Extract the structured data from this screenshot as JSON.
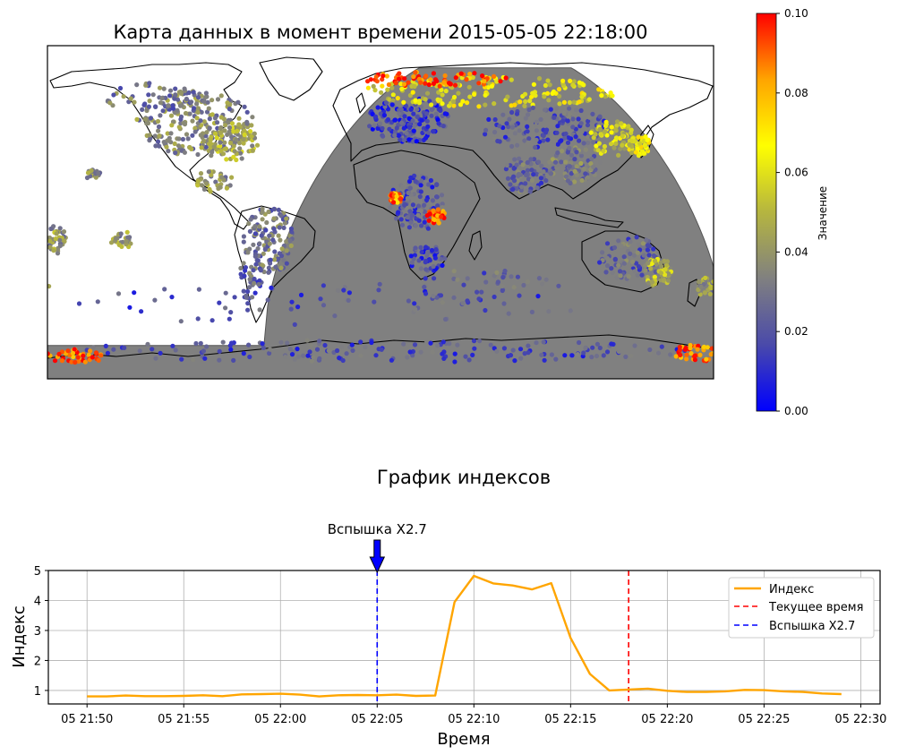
{
  "chart_data": [
    {
      "type": "scatter",
      "title": "Карта данных в момент времени 2015-05-05 22:18:00",
      "colorbar": {
        "label": "Значение",
        "vmin": 0.0,
        "vmax": 0.1,
        "ticks": [
          "0.00",
          "0.02",
          "0.04",
          "0.06",
          "0.08",
          "0.10"
        ],
        "colors": [
          "#0000ff",
          "#4a4aaa",
          "#808080",
          "#b5b540",
          "#ffff00",
          "#ffa500",
          "#ff0000"
        ]
      },
      "night_shade_color": "#808080",
      "clusters": [
        {
          "lon": -100,
          "lat": 48,
          "rlon": 32,
          "rlat": 18,
          "value": 0.035,
          "n": 260
        },
        {
          "lon": -80,
          "lat": 38,
          "rlon": 14,
          "rlat": 10,
          "value": 0.045,
          "n": 80
        },
        {
          "lon": -120,
          "lat": 62,
          "rlon": 30,
          "rlat": 8,
          "value": 0.03,
          "n": 60
        },
        {
          "lon": -60,
          "lat": -15,
          "rlon": 14,
          "rlat": 18,
          "value": 0.03,
          "n": 140
        },
        {
          "lon": -70,
          "lat": -35,
          "rlon": 6,
          "rlat": 14,
          "value": 0.025,
          "n": 40
        },
        {
          "lon": -90,
          "lat": 17,
          "rlon": 10,
          "rlat": 6,
          "value": 0.04,
          "n": 40
        },
        {
          "lon": 15,
          "lat": 50,
          "rlon": 22,
          "rlat": 12,
          "value": 0.015,
          "n": 160
        },
        {
          "lon": 60,
          "lat": 65,
          "rlon": 70,
          "rlat": 8,
          "value": 0.06,
          "n": 160
        },
        {
          "lon": 30,
          "lat": 72,
          "rlon": 40,
          "rlat": 4,
          "value": 0.095,
          "n": 70
        },
        {
          "lon": 90,
          "lat": 45,
          "rlon": 35,
          "rlat": 12,
          "value": 0.02,
          "n": 140
        },
        {
          "lon": 20,
          "lat": 5,
          "rlon": 15,
          "rlat": 15,
          "value": 0.02,
          "n": 120
        },
        {
          "lon": 30,
          "lat": -2,
          "rlon": 5,
          "rlat": 4,
          "value": 0.09,
          "n": 45
        },
        {
          "lon": 8,
          "lat": 8,
          "rlon": 4,
          "rlat": 3,
          "value": 0.085,
          "n": 30
        },
        {
          "lon": 25,
          "lat": -25,
          "rlon": 10,
          "rlat": 8,
          "value": 0.015,
          "n": 50
        },
        {
          "lon": 78,
          "lat": 20,
          "rlon": 12,
          "rlat": 10,
          "value": 0.025,
          "n": 70
        },
        {
          "lon": 105,
          "lat": 25,
          "rlon": 15,
          "rlat": 10,
          "value": 0.03,
          "n": 80
        },
        {
          "lon": 125,
          "lat": 40,
          "rlon": 12,
          "rlat": 10,
          "value": 0.055,
          "n": 70
        },
        {
          "lon": 140,
          "lat": 36,
          "rlon": 6,
          "rlat": 6,
          "value": 0.06,
          "n": 40
        },
        {
          "lon": 135,
          "lat": -25,
          "rlon": 18,
          "rlat": 12,
          "value": 0.025,
          "n": 90
        },
        {
          "lon": 150,
          "lat": -32,
          "rlon": 8,
          "rlat": 8,
          "value": 0.05,
          "n": 50
        },
        {
          "lon": 175,
          "lat": -40,
          "rlon": 6,
          "rlat": 5,
          "value": 0.04,
          "n": 30
        },
        {
          "lon": -155,
          "lat": 20,
          "rlon": 4,
          "rlat": 3,
          "value": 0.035,
          "n": 20
        },
        {
          "lon": -175,
          "lat": -15,
          "rlon": 5,
          "rlat": 8,
          "value": 0.04,
          "n": 40
        },
        {
          "lon": -140,
          "lat": -15,
          "rlon": 6,
          "rlat": 5,
          "value": 0.04,
          "n": 25
        },
        {
          "lon": 0,
          "lat": -75,
          "rlon": 170,
          "rlat": 6,
          "value": 0.02,
          "n": 180
        },
        {
          "lon": -165,
          "lat": -78,
          "rlon": 15,
          "rlat": 4,
          "value": 0.09,
          "n": 40
        },
        {
          "lon": 170,
          "lat": -76,
          "rlon": 12,
          "rlat": 5,
          "value": 0.09,
          "n": 40
        },
        {
          "lon": -30,
          "lat": -50,
          "rlon": 140,
          "rlat": 12,
          "value": 0.02,
          "n": 70
        },
        {
          "lon": 60,
          "lat": -40,
          "rlon": 40,
          "rlat": 10,
          "value": 0.025,
          "n": 40
        }
      ]
    },
    {
      "type": "line",
      "title": "График индексов",
      "xlabel": "Время",
      "ylabel": "Индекс",
      "x_start": "2015-05-05 21:50",
      "x_step_minutes": 1,
      "xlim_minutes": [
        -2,
        41
      ],
      "ylim": [
        0.55,
        5
      ],
      "yticks": [
        1,
        2,
        3,
        4,
        5
      ],
      "xticks": [
        {
          "minute": 0,
          "label": "05 21:50"
        },
        {
          "minute": 5,
          "label": "05 21:55"
        },
        {
          "minute": 10,
          "label": "05 22:00"
        },
        {
          "minute": 15,
          "label": "05 22:05"
        },
        {
          "minute": 20,
          "label": "05 22:10"
        },
        {
          "minute": 25,
          "label": "05 22:15"
        },
        {
          "minute": 30,
          "label": "05 22:20"
        },
        {
          "minute": 35,
          "label": "05 22:25"
        },
        {
          "minute": 40,
          "label": "05 22:30"
        }
      ],
      "grid": true,
      "legend_position": "top-right",
      "series": [
        {
          "name": "Индекс",
          "color": "#ffa500",
          "values": [
            0.8,
            0.8,
            0.83,
            0.81,
            0.81,
            0.82,
            0.84,
            0.81,
            0.87,
            0.88,
            0.89,
            0.86,
            0.8,
            0.84,
            0.85,
            0.84,
            0.86,
            0.82,
            0.83,
            3.95,
            4.82,
            4.57,
            4.5,
            4.37,
            4.58,
            2.75,
            1.55,
            1.0,
            1.03,
            1.06,
            0.99,
            0.95,
            0.95,
            0.97,
            1.02,
            1.01,
            0.97,
            0.95,
            0.9,
            0.88
          ]
        }
      ],
      "vlines": [
        {
          "name": "Текущее время",
          "minute": 28,
          "color": "#ff0000"
        },
        {
          "name": "Вспышка X2.7",
          "minute": 15,
          "color": "#0000ff"
        }
      ],
      "annotation": {
        "text": "Вспышка X2.7",
        "minute": 15
      }
    }
  ]
}
